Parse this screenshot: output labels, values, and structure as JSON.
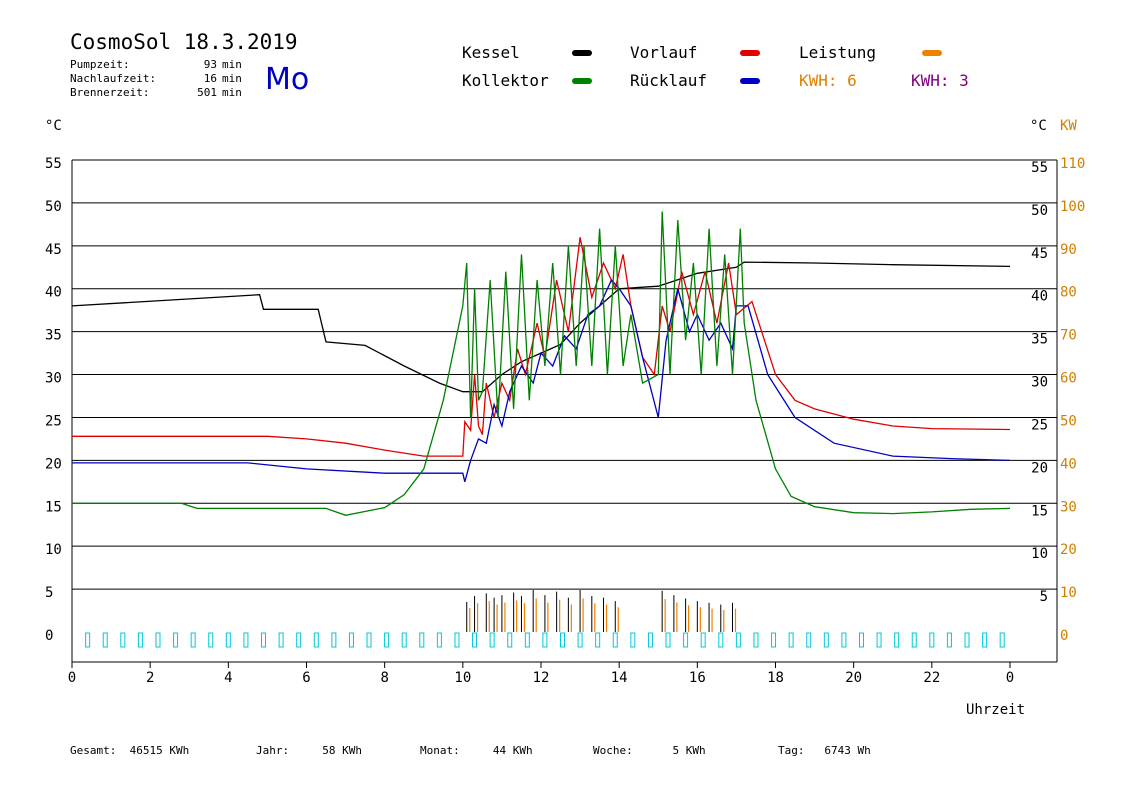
{
  "header": {
    "title": "CosmoSol 18.3.2019",
    "day": "Mo",
    "stats": [
      {
        "label": "Pumpzeit:",
        "value": "93",
        "unit": "min"
      },
      {
        "label": "Nachlaufzeit:",
        "value": "16",
        "unit": "min"
      },
      {
        "label": "Brennerzeit:",
        "value": "501",
        "unit": "min"
      }
    ]
  },
  "legend": {
    "kessel": {
      "label": "Kessel",
      "color": "#000000"
    },
    "vorlauf": {
      "label": "Vorlauf",
      "color": "#e00000"
    },
    "leistung": {
      "label": "Leistung",
      "color": "#f08000"
    },
    "kollektor": {
      "label": "Kollektor",
      "color": "#008000"
    },
    "ruecklauf": {
      "label": "Rücklauf",
      "color": "#0000c0"
    },
    "kwh1": {
      "label": "KWH:",
      "value": "6",
      "color": "#e08000"
    },
    "kwh2": {
      "label": "KWH:",
      "value": "3",
      "color": "#800080"
    }
  },
  "axes": {
    "left_unit": "°C",
    "right_unit_c": "°C",
    "right_unit_kw": "KW",
    "xlabel": "Uhrzeit"
  },
  "footer": [
    {
      "label": "Gesamt:",
      "value": "46515 KWh"
    },
    {
      "label": "Jahr:",
      "value": "58 KWh"
    },
    {
      "label": "Monat:",
      "value": "44 KWh"
    },
    {
      "label": "Woche:",
      "value": "5 KWh"
    },
    {
      "label": "Tag:",
      "value": "6743 Wh"
    }
  ],
  "chart_data": {
    "type": "line",
    "title": "CosmoSol 18.3.2019",
    "xlabel": "Uhrzeit",
    "ylabel": "°C",
    "y2label": "KW",
    "xlim": [
      0,
      24
    ],
    "ylim": [
      0,
      55
    ],
    "y2lim": [
      0,
      110
    ],
    "grid": true,
    "legend_position": "top",
    "x_ticks": [
      "0",
      "2",
      "4",
      "6",
      "8",
      "10",
      "12",
      "14",
      "16",
      "18",
      "20",
      "22",
      "0"
    ],
    "y_ticks_left": [
      0,
      5,
      10,
      15,
      20,
      25,
      30,
      35,
      40,
      45,
      50,
      55
    ],
    "y_ticks_right_c": [
      5,
      10,
      15,
      20,
      25,
      30,
      35,
      40,
      45,
      50,
      55
    ],
    "y_ticks_right_kw": [
      0,
      10,
      20,
      30,
      40,
      50,
      60,
      70,
      80,
      90,
      100,
      110
    ],
    "series": [
      {
        "name": "Kessel",
        "color": "#000000",
        "points": [
          [
            0,
            38
          ],
          [
            4.8,
            39.3
          ],
          [
            4.9,
            37.6
          ],
          [
            6.3,
            37.6
          ],
          [
            6.5,
            33.8
          ],
          [
            7.5,
            33.4
          ],
          [
            8.5,
            31
          ],
          [
            9.4,
            29
          ],
          [
            10,
            28
          ],
          [
            10.5,
            28
          ],
          [
            11,
            30
          ],
          [
            11.5,
            31.5
          ],
          [
            12,
            32.5
          ],
          [
            12.5,
            33.5
          ],
          [
            13,
            36
          ],
          [
            13.5,
            38
          ],
          [
            14,
            40
          ],
          [
            15,
            40.3
          ],
          [
            16,
            41.8
          ],
          [
            17,
            42.5
          ],
          [
            17.2,
            43.1
          ],
          [
            19,
            43
          ],
          [
            21,
            42.8
          ],
          [
            24,
            42.6
          ]
        ]
      },
      {
        "name": "Vorlauf",
        "color": "#e00000",
        "points": [
          [
            0,
            22.8
          ],
          [
            5,
            22.8
          ],
          [
            6,
            22.5
          ],
          [
            7,
            22
          ],
          [
            8,
            21.2
          ],
          [
            9,
            20.5
          ],
          [
            10,
            20.5
          ],
          [
            10.05,
            24.5
          ],
          [
            10.2,
            23.5
          ],
          [
            10.3,
            30
          ],
          [
            10.4,
            24
          ],
          [
            10.5,
            23
          ],
          [
            10.6,
            29
          ],
          [
            10.8,
            25
          ],
          [
            11,
            29
          ],
          [
            11.2,
            27
          ],
          [
            11.4,
            33
          ],
          [
            11.6,
            30
          ],
          [
            11.9,
            36
          ],
          [
            12.1,
            32
          ],
          [
            12.4,
            41
          ],
          [
            12.7,
            35
          ],
          [
            13,
            46
          ],
          [
            13.3,
            39
          ],
          [
            13.6,
            43
          ],
          [
            13.9,
            40
          ],
          [
            14.1,
            44
          ],
          [
            14.3,
            38
          ],
          [
            14.6,
            32
          ],
          [
            14.9,
            30
          ],
          [
            15.1,
            38
          ],
          [
            15.3,
            35
          ],
          [
            15.6,
            42
          ],
          [
            15.9,
            37
          ],
          [
            16.2,
            42
          ],
          [
            16.5,
            36
          ],
          [
            16.8,
            43
          ],
          [
            17,
            37
          ],
          [
            17.4,
            38.5
          ],
          [
            18,
            30
          ],
          [
            18.5,
            27
          ],
          [
            19,
            26
          ],
          [
            20,
            24.8
          ],
          [
            21,
            24
          ],
          [
            22,
            23.7
          ],
          [
            24,
            23.6
          ]
        ]
      },
      {
        "name": "Rücklauf",
        "color": "#0000c0",
        "points": [
          [
            0,
            19.7
          ],
          [
            4.5,
            19.7
          ],
          [
            6,
            19
          ],
          [
            8,
            18.5
          ],
          [
            10,
            18.5
          ],
          [
            10.05,
            17.5
          ],
          [
            10.2,
            20
          ],
          [
            10.4,
            22.5
          ],
          [
            10.6,
            22
          ],
          [
            10.8,
            26.5
          ],
          [
            11,
            24
          ],
          [
            11.2,
            28
          ],
          [
            11.5,
            31
          ],
          [
            11.8,
            29
          ],
          [
            12,
            32.5
          ],
          [
            12.3,
            31
          ],
          [
            12.6,
            34.5
          ],
          [
            12.9,
            33
          ],
          [
            13.2,
            37
          ],
          [
            13.5,
            38
          ],
          [
            13.8,
            41
          ],
          [
            14,
            40
          ],
          [
            14.3,
            38
          ],
          [
            14.6,
            32
          ],
          [
            15,
            25
          ],
          [
            15.2,
            34
          ],
          [
            15.5,
            40
          ],
          [
            15.8,
            35
          ],
          [
            16,
            37
          ],
          [
            16.3,
            34
          ],
          [
            16.6,
            36
          ],
          [
            16.9,
            33
          ],
          [
            17,
            38
          ],
          [
            17.3,
            38
          ],
          [
            17.8,
            30
          ],
          [
            18.5,
            25
          ],
          [
            19.5,
            22
          ],
          [
            21,
            20.5
          ],
          [
            22.5,
            20.2
          ],
          [
            24,
            20
          ]
        ]
      },
      {
        "name": "Kollektor",
        "color": "#008000",
        "points": [
          [
            0,
            15
          ],
          [
            2.8,
            15
          ],
          [
            3.2,
            14.4
          ],
          [
            6.5,
            14.4
          ],
          [
            7,
            13.6
          ],
          [
            8,
            14.5
          ],
          [
            8.5,
            16
          ],
          [
            9,
            19
          ],
          [
            9.5,
            27
          ],
          [
            10,
            38
          ],
          [
            10.1,
            43
          ],
          [
            10.2,
            25
          ],
          [
            10.3,
            40
          ],
          [
            10.4,
            27
          ],
          [
            10.5,
            28
          ],
          [
            10.7,
            41
          ],
          [
            10.9,
            25
          ],
          [
            11.1,
            42
          ],
          [
            11.3,
            26
          ],
          [
            11.5,
            44
          ],
          [
            11.7,
            27
          ],
          [
            11.9,
            41
          ],
          [
            12.1,
            31
          ],
          [
            12.3,
            43
          ],
          [
            12.5,
            30
          ],
          [
            12.7,
            45
          ],
          [
            12.9,
            31
          ],
          [
            13.1,
            45
          ],
          [
            13.3,
            31
          ],
          [
            13.5,
            47
          ],
          [
            13.7,
            30
          ],
          [
            13.9,
            45
          ],
          [
            14.1,
            31
          ],
          [
            14.3,
            37
          ],
          [
            14.6,
            29
          ],
          [
            15,
            30
          ],
          [
            15.1,
            49
          ],
          [
            15.3,
            30
          ],
          [
            15.5,
            48
          ],
          [
            15.7,
            34
          ],
          [
            15.9,
            43
          ],
          [
            16.1,
            30
          ],
          [
            16.3,
            47
          ],
          [
            16.5,
            31
          ],
          [
            16.7,
            44
          ],
          [
            16.9,
            30
          ],
          [
            17.1,
            47
          ],
          [
            17.2,
            36
          ],
          [
            17.5,
            27
          ],
          [
            18,
            19
          ],
          [
            18.4,
            15.8
          ],
          [
            19,
            14.6
          ],
          [
            20,
            13.9
          ],
          [
            21,
            13.8
          ],
          [
            22,
            14
          ],
          [
            23,
            14.3
          ],
          [
            24,
            14.4
          ]
        ]
      }
    ]
  }
}
